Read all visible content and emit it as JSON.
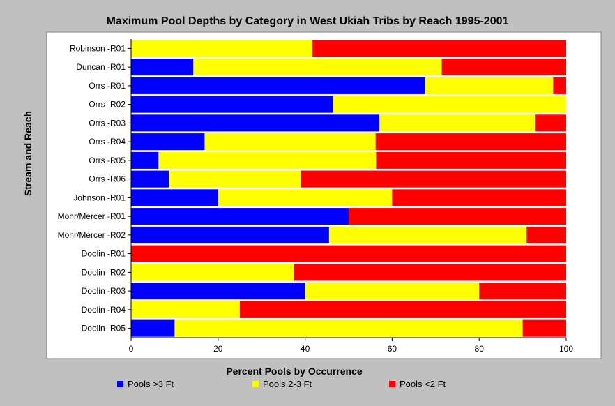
{
  "chart_data": {
    "type": "bar",
    "orientation": "horizontal",
    "stacked": true,
    "title": "Maximum Pool Depths by Category in West Ukiah Tribs by Reach 1995-2001",
    "xlabel": "Percent Pools by Occurrence",
    "ylabel": "Stream and Reach",
    "xlim": [
      0,
      100
    ],
    "xticks": [
      "0",
      "20",
      "40",
      "60",
      "80",
      "100"
    ],
    "grid": false,
    "legend_position": "bottom",
    "categories": [
      "Robinson -R01",
      "Duncan -R01",
      "Orrs -R01",
      "Orrs -R02",
      "Orrs -R03",
      "Orrs -R04",
      "Orrs -R05",
      "Orrs -R06",
      "Johnson -R01",
      "Mohr/Mercer -R01",
      "Mohr/Mercer -R02",
      "Doolin -R01",
      "Doolin -R02",
      "Doolin -R03",
      "Doolin -R04",
      "Doolin -R05"
    ],
    "series": [
      {
        "name": "Pools >3 Ft",
        "color": "#0000ff",
        "values": [
          0,
          14.3,
          67.6,
          46.4,
          57.1,
          16.9,
          6.3,
          8.7,
          20,
          50,
          45.5,
          0,
          0,
          40,
          0,
          10
        ]
      },
      {
        "name": "Pools 2-3 Ft",
        "color": "#ffff00",
        "values": [
          41.7,
          57.1,
          29.4,
          53.6,
          35.7,
          39.3,
          50,
          30.4,
          40,
          0,
          45.4,
          0,
          37.5,
          40,
          25,
          80
        ]
      },
      {
        "name": "Pools <2 Ft",
        "color": "#ff0000",
        "values": [
          58.3,
          28.6,
          3,
          0,
          7.2,
          43.8,
          43.7,
          60.9,
          40,
          50,
          9.1,
          100,
          62.5,
          20,
          75,
          10
        ]
      }
    ]
  }
}
